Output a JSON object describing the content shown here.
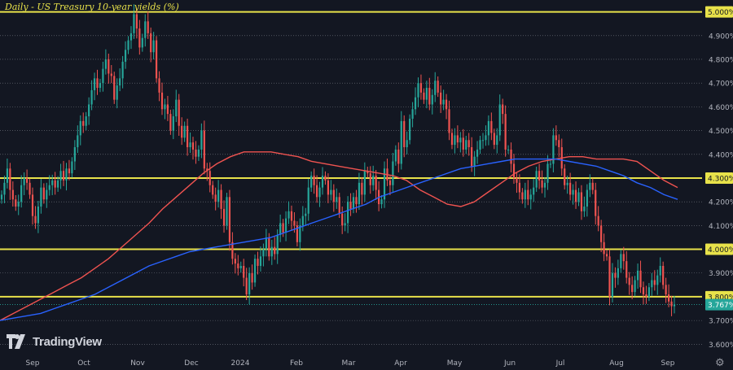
{
  "title": "Daily - US Treasury 10-year yields (%)",
  "brand": "TradingView",
  "icons": {
    "logo": "tradingview-logo-icon",
    "settings": "gear-icon"
  },
  "colors": {
    "background": "#131722",
    "up": "#26a69a",
    "down": "#ef5350",
    "ma_fast": "#ef5350",
    "ma_slow": "#2962ff",
    "level": "#e8e24a",
    "axis_text": "#b2b5be",
    "current_price": "#26a69a"
  },
  "chart_data": {
    "type": "candlestick",
    "title": "Daily - US Treasury 10-year yields (%)",
    "y_ticks": [
      "3.600%",
      "3.700%",
      "3.800%",
      "3.900%",
      "4.000%",
      "4.100%",
      "4.200%",
      "4.300%",
      "4.400%",
      "4.500%",
      "4.600%",
      "4.700%",
      "4.800%",
      "4.900%",
      "5.000%"
    ],
    "ylim": [
      3.56,
      5.05
    ],
    "x_ticks": [
      "Sep",
      "Oct",
      "Nov",
      "Dec",
      "2024",
      "Feb",
      "Mar",
      "Apr",
      "May",
      "Jun",
      "Jul",
      "Aug",
      "Sep"
    ],
    "horizontal_levels": [
      {
        "value": 5.0,
        "label": "5.000%"
      },
      {
        "value": 4.3,
        "label": "4.300%"
      },
      {
        "value": 4.0,
        "label": "4.000%"
      },
      {
        "value": 3.8,
        "label": "3.800%"
      }
    ],
    "current_value": {
      "value": 3.767,
      "label": "3.767%"
    },
    "series": [
      {
        "name": "close",
        "values": [
          4.23,
          4.28,
          4.34,
          4.25,
          4.21,
          4.18,
          4.2,
          4.27,
          4.3,
          4.28,
          4.23,
          4.14,
          4.11,
          4.18,
          4.26,
          4.21,
          4.25,
          4.27,
          4.29,
          4.26,
          4.29,
          4.33,
          4.29,
          4.34,
          4.32,
          4.37,
          4.43,
          4.48,
          4.54,
          4.52,
          4.56,
          4.61,
          4.67,
          4.72,
          4.68,
          4.7,
          4.76,
          4.8,
          4.74,
          4.73,
          4.63,
          4.69,
          4.72,
          4.79,
          4.84,
          4.88,
          4.91,
          4.99,
          4.93,
          4.85,
          4.89,
          4.96,
          4.91,
          4.83,
          4.88,
          4.72,
          4.66,
          4.59,
          4.61,
          4.57,
          4.5,
          4.56,
          4.63,
          4.52,
          4.47,
          4.52,
          4.43,
          4.45,
          4.42,
          4.39,
          4.42,
          4.5,
          4.34,
          4.33,
          4.27,
          4.23,
          4.2,
          4.25,
          4.17,
          4.1,
          4.22,
          4.03,
          3.96,
          3.94,
          3.92,
          3.93,
          3.88,
          3.81,
          3.9,
          3.86,
          3.96,
          3.93,
          3.97,
          4.0,
          4.05,
          3.97,
          4.01,
          3.98,
          4.06,
          4.11,
          4.07,
          4.13,
          4.16,
          4.12,
          4.1,
          4.03,
          4.1,
          4.14,
          4.15,
          4.26,
          4.31,
          4.27,
          4.22,
          4.26,
          4.31,
          4.29,
          4.23,
          4.25,
          4.2,
          4.22,
          4.15,
          4.1,
          4.11,
          4.2,
          4.17,
          4.22,
          4.19,
          4.28,
          4.23,
          4.33,
          4.32,
          4.27,
          4.31,
          4.25,
          4.19,
          4.21,
          4.34,
          4.29,
          4.27,
          4.37,
          4.42,
          4.36,
          4.54,
          4.43,
          4.46,
          4.55,
          4.59,
          4.64,
          4.7,
          4.66,
          4.63,
          4.68,
          4.61,
          4.65,
          4.71,
          4.66,
          4.61,
          4.63,
          4.59,
          4.49,
          4.44,
          4.48,
          4.45,
          4.47,
          4.42,
          4.46,
          4.43,
          4.35,
          4.39,
          4.42,
          4.46,
          4.46,
          4.48,
          4.54,
          4.49,
          4.44,
          4.48,
          4.61,
          4.57,
          4.42,
          4.42,
          4.36,
          4.3,
          4.28,
          4.24,
          4.21,
          4.25,
          4.21,
          4.23,
          4.26,
          4.33,
          4.29,
          4.26,
          4.28,
          4.36,
          4.36,
          4.48,
          4.46,
          4.43,
          4.34,
          4.27,
          4.28,
          4.23,
          4.25,
          4.2,
          4.24,
          4.16,
          4.18,
          4.25,
          4.28,
          4.25,
          4.14,
          4.1,
          4.03,
          3.98,
          3.97,
          3.8,
          3.9,
          3.88,
          3.92,
          3.98,
          3.95,
          3.88,
          3.85,
          3.82,
          3.87,
          3.91,
          3.84,
          3.81,
          3.8,
          3.84,
          3.87,
          3.85,
          3.89,
          3.93,
          3.85,
          3.81,
          3.78,
          3.76,
          3.767
        ]
      }
    ],
    "moving_averages": [
      {
        "name": "MA fast (red)",
        "values": [
          3.7,
          3.73,
          3.76,
          3.79,
          3.82,
          3.85,
          3.88,
          3.92,
          3.96,
          4.01,
          4.06,
          4.11,
          4.17,
          4.22,
          4.27,
          4.32,
          4.36,
          4.39,
          4.41,
          4.41,
          4.41,
          4.4,
          4.39,
          4.37,
          4.36,
          4.35,
          4.34,
          4.33,
          4.32,
          4.31,
          4.29,
          4.25,
          4.22,
          4.19,
          4.18,
          4.2,
          4.24,
          4.28,
          4.32,
          4.35,
          4.37,
          4.38,
          4.39,
          4.39,
          4.38,
          4.38,
          4.38,
          4.37,
          4.33,
          4.29,
          4.26
        ]
      },
      {
        "name": "MA slow (blue)",
        "values": [
          3.7,
          3.71,
          3.72,
          3.73,
          3.75,
          3.77,
          3.79,
          3.81,
          3.84,
          3.87,
          3.9,
          3.93,
          3.95,
          3.97,
          3.99,
          4.0,
          4.01,
          4.02,
          4.03,
          4.04,
          4.05,
          4.07,
          4.09,
          4.11,
          4.13,
          4.15,
          4.17,
          4.19,
          4.22,
          4.24,
          4.26,
          4.28,
          4.3,
          4.32,
          4.34,
          4.35,
          4.36,
          4.37,
          4.38,
          4.38,
          4.38,
          4.38,
          4.37,
          4.36,
          4.35,
          4.33,
          4.31,
          4.28,
          4.26,
          4.23,
          4.21
        ]
      }
    ]
  }
}
